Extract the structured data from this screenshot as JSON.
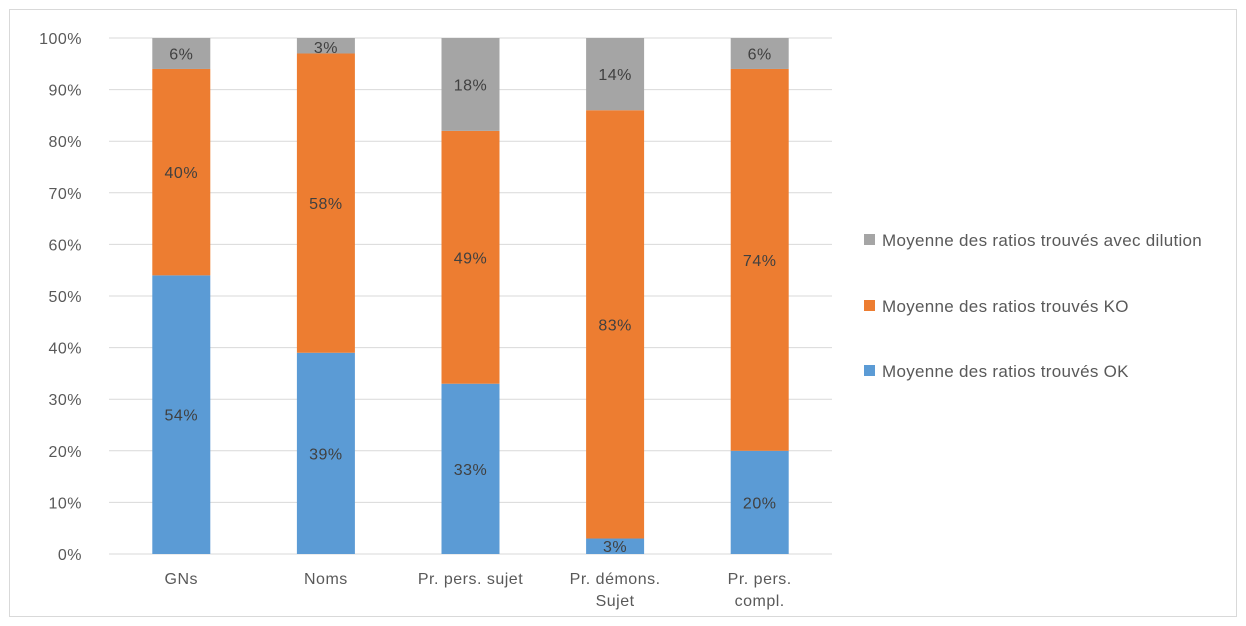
{
  "chart_data": {
    "type": "bar",
    "stacked": true,
    "percent": true,
    "categories": [
      [
        "GNs"
      ],
      [
        "Noms"
      ],
      [
        "Pr. pers. sujet"
      ],
      [
        "Pr. démons.",
        "Sujet"
      ],
      [
        "Pr. pers.",
        "compl."
      ]
    ],
    "series": [
      {
        "name": "Moyenne des ratios trouvés OK",
        "color": "#5b9bd5",
        "values": [
          54,
          39,
          33,
          3,
          20
        ],
        "labels": [
          "54%",
          "39%",
          "33%",
          "3%",
          "20%"
        ]
      },
      {
        "name": "Moyenne des ratios trouvés KO",
        "color": "#ed7d31",
        "values": [
          40,
          58,
          49,
          83,
          74
        ],
        "labels": [
          "40%",
          "58%",
          "49%",
          "83%",
          "74%"
        ]
      },
      {
        "name": "Moyenne des ratios trouvés avec dilution",
        "color": "#a5a5a5",
        "values": [
          6,
          3,
          18,
          14,
          6
        ],
        "labels": [
          "6%",
          "3%",
          "18%",
          "14%",
          "6%"
        ]
      }
    ],
    "ylim": [
      0,
      100
    ],
    "yticks": [
      "0%",
      "10%",
      "20%",
      "30%",
      "40%",
      "50%",
      "60%",
      "70%",
      "80%",
      "90%",
      "100%"
    ],
    "grid": true,
    "legend_position": "right",
    "legend_order": [
      2,
      1,
      0
    ],
    "title": "",
    "xlabel": "",
    "ylabel": ""
  }
}
